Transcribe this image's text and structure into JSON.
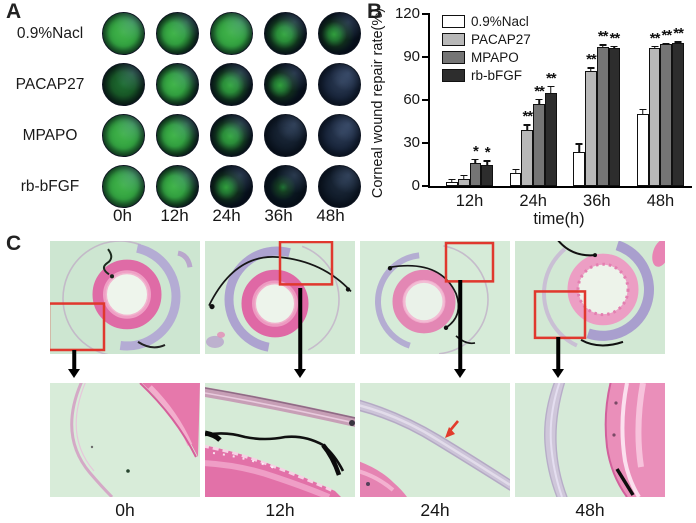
{
  "figure": {
    "panel_a_label": "A",
    "panel_b_label": "B",
    "panel_c_label": "C"
  },
  "palette": {
    "annotation_red": "#e0382e",
    "fluorescein_green": "#35a844",
    "histology_background": "#d3e9d6",
    "eosin_pink": "#e06ba6",
    "lavender": "#ab9fd0"
  },
  "panelA": {
    "rows": [
      {
        "label": "0.9%Nacl",
        "cells": [
          "full",
          "large",
          "full",
          "medium",
          "small"
        ]
      },
      {
        "label": "PACAP27",
        "cells": [
          "dim",
          "large",
          "medium",
          "small",
          "none-blue"
        ]
      },
      {
        "label": "MPAPO",
        "cells": [
          "full",
          "large",
          "medium",
          "none",
          "none-blue"
        ]
      },
      {
        "label": "rb-bFGF",
        "cells": [
          "full",
          "large",
          "small",
          "trace",
          "none"
        ]
      }
    ],
    "timepoints": [
      "0h",
      "12h",
      "24h",
      "36h",
      "48h"
    ]
  },
  "chart_data": {
    "type": "bar",
    "title": "",
    "ylabel": "Corneal wound repair rate(%)",
    "xlabel": "time(h)",
    "ylim": [
      0,
      120
    ],
    "yticks": [
      0,
      30,
      60,
      90,
      120
    ],
    "categories": [
      "12h",
      "24h",
      "36h",
      "48h"
    ],
    "legend_position": "upper-left",
    "grid": false,
    "series": [
      {
        "name": "0.9%Nacl",
        "color": "#ffffff",
        "values": [
          3,
          9,
          24,
          50
        ],
        "errors": [
          2,
          3,
          6,
          4
        ],
        "sig": [
          "",
          "",
          "",
          ""
        ]
      },
      {
        "name": "PACAP27",
        "color": "#b8b8b8",
        "values": [
          5,
          39,
          80,
          96
        ],
        "errors": [
          3,
          4,
          3,
          2
        ],
        "sig": [
          "",
          "**",
          "**",
          "**"
        ]
      },
      {
        "name": "MPAPO",
        "color": "#757575",
        "values": [
          16,
          57,
          97,
          99
        ],
        "errors": [
          3,
          4,
          2,
          1
        ],
        "sig": [
          "*",
          "**",
          "**",
          "**"
        ]
      },
      {
        "name": "rb-bFGF",
        "color": "#2d2d2d",
        "values": [
          15,
          65,
          96,
          100
        ],
        "errors": [
          3,
          5,
          2,
          1
        ],
        "sig": [
          "*",
          "**",
          "**",
          "**"
        ]
      }
    ]
  },
  "panelC": {
    "timepoints": [
      "0h",
      "12h",
      "24h",
      "48h"
    ]
  }
}
